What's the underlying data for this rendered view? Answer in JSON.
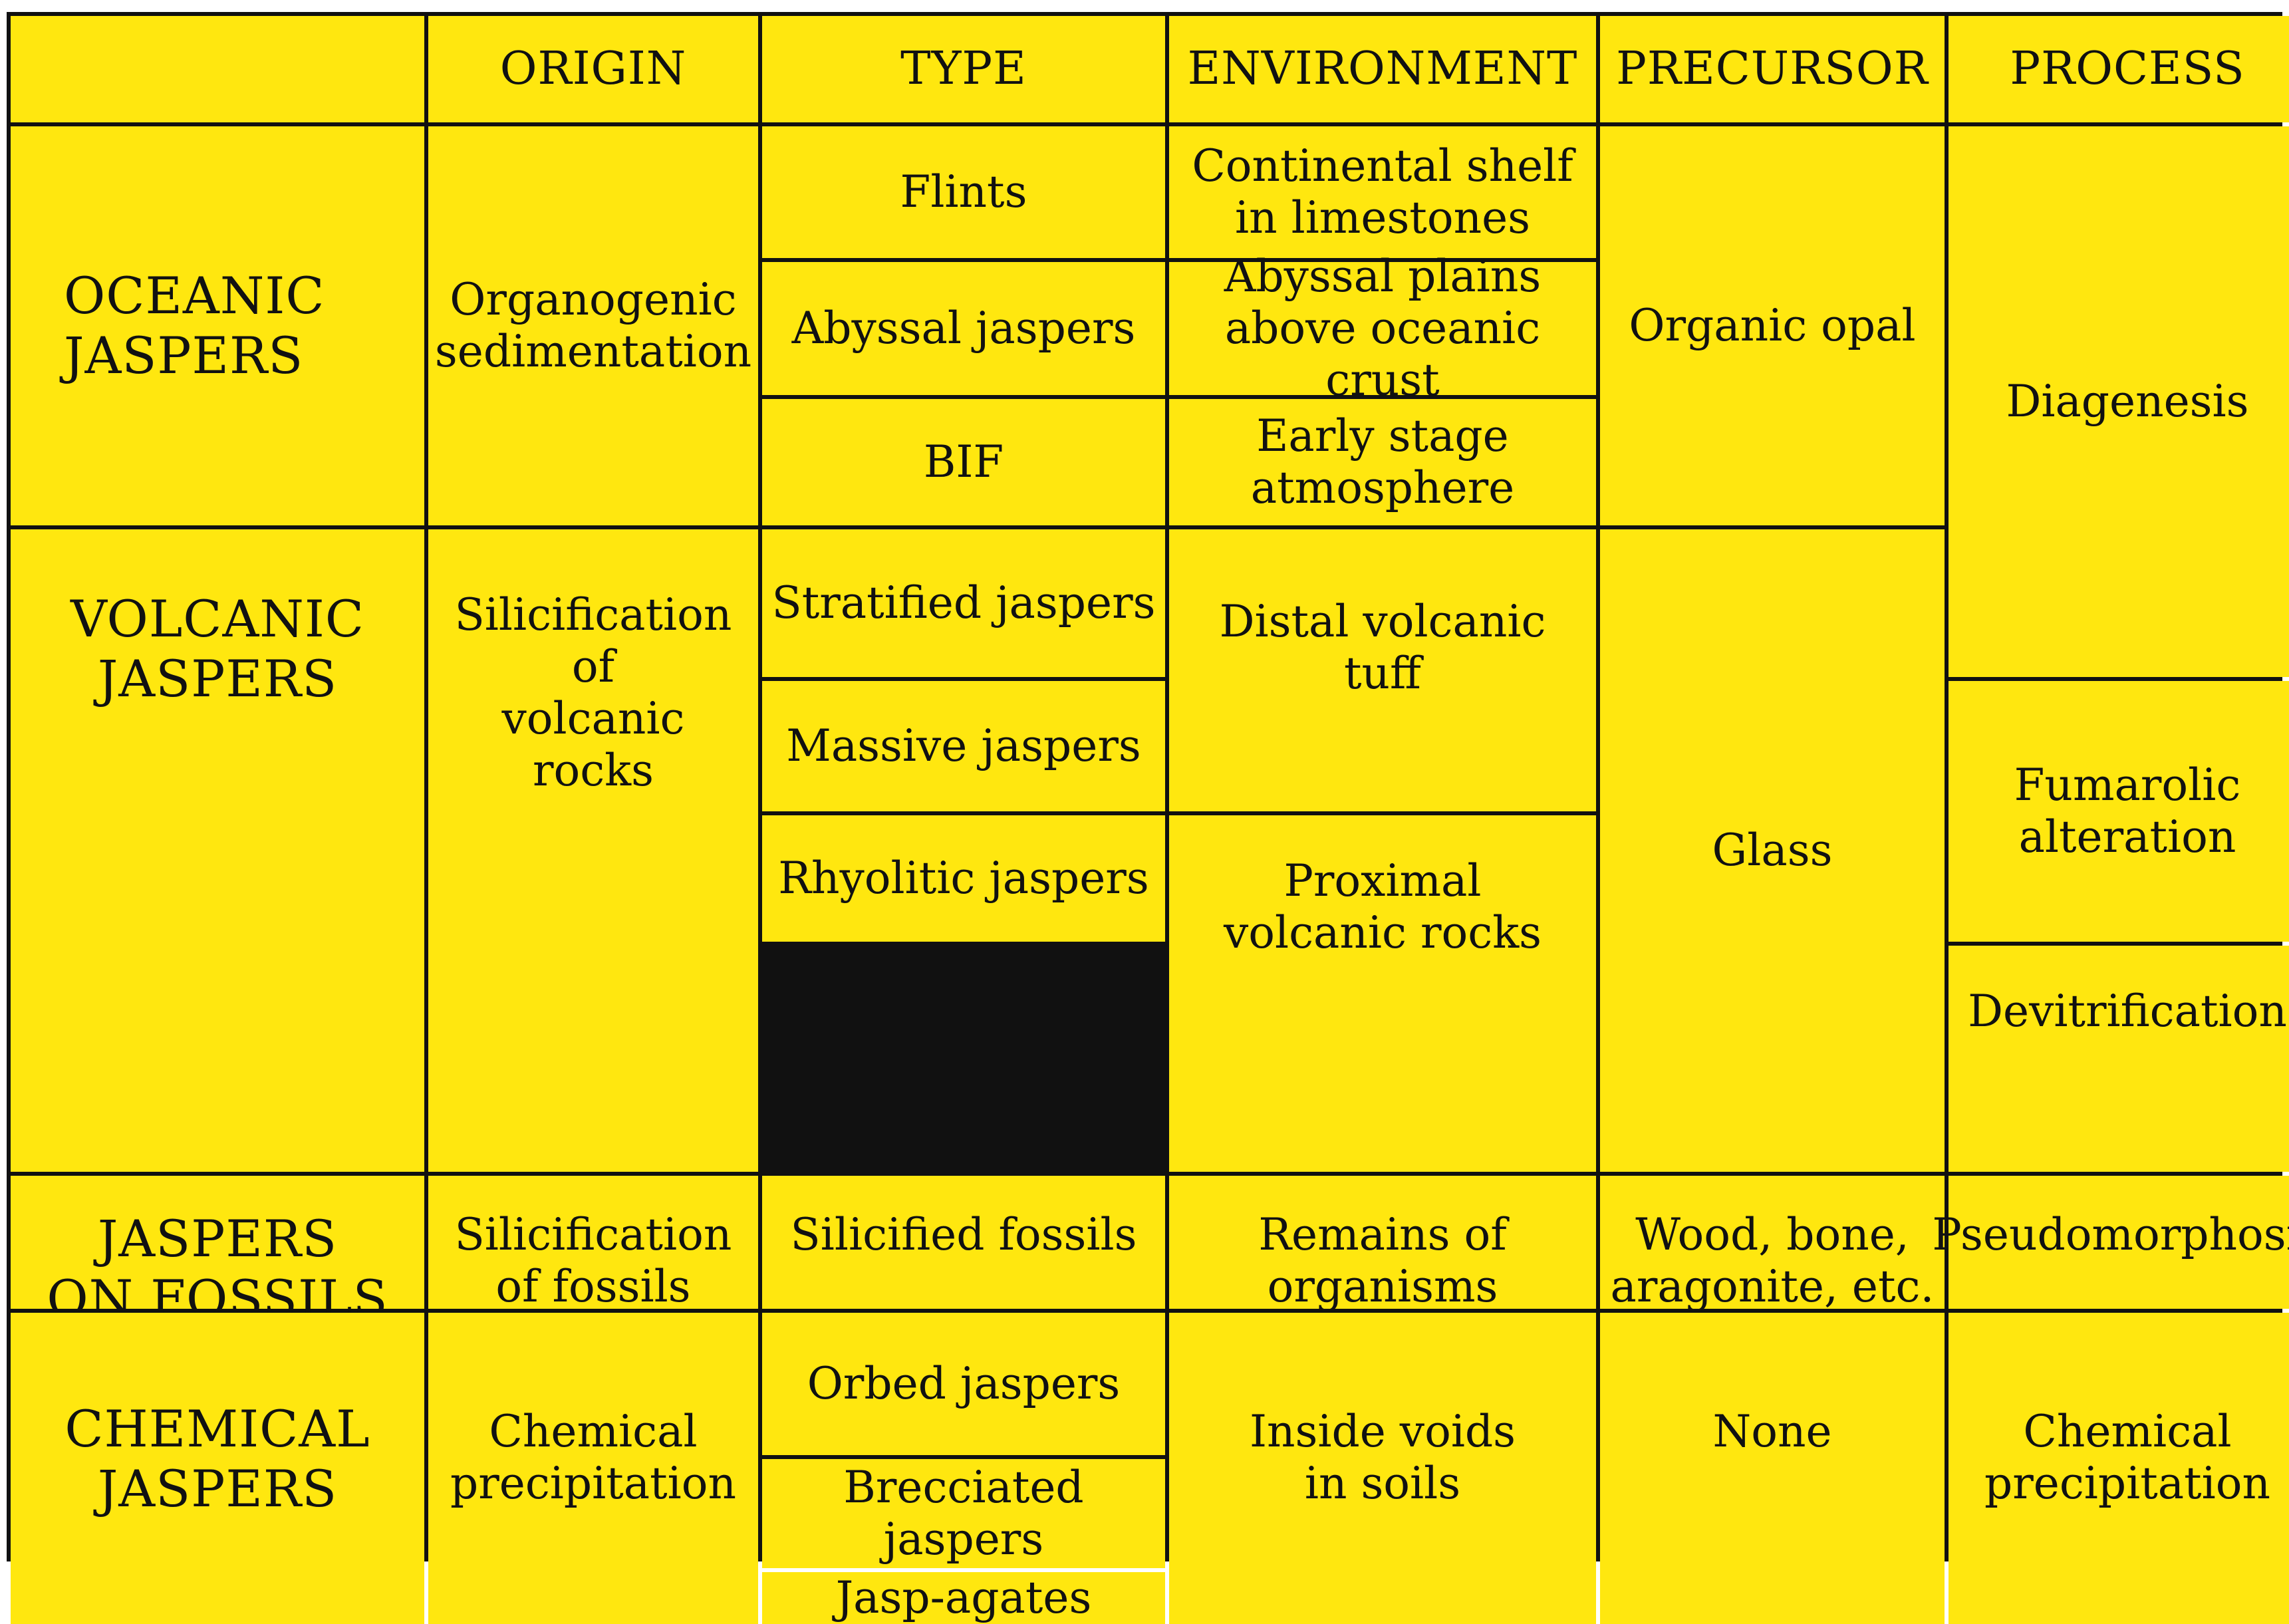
{
  "headers": {
    "blank": "",
    "origin": "ORIGIN",
    "type": "TYPE",
    "environment": "ENVIRONMENT",
    "precursor": "PRECURSOR",
    "process": "PROCESS"
  },
  "oceanic": {
    "label": "OCEANIC\nJASPERS",
    "origin": "Organogenic\nsedimentation",
    "types": [
      "Flints",
      "Abyssal jaspers",
      "BIF"
    ],
    "environments": [
      "Continental shelf\nin limestones",
      "Abyssal plains\nabove oceanic crust",
      "Early stage\natmosphere"
    ],
    "precursor": "Organic opal",
    "process": "Diagenesis"
  },
  "volcanic": {
    "label": "VOLCANIC\nJASPERS",
    "origin": "Silicification of\nvolcanic rocks",
    "types": [
      "Stratified jaspers",
      "Massive jaspers",
      "Rhyolitic jaspers"
    ],
    "environments": [
      "Distal volcanic tuff",
      "Proximal\nvolcanic rocks"
    ],
    "precursor": "Glass",
    "processes": [
      "Fumarolic\nalteration",
      "Devitrification"
    ]
  },
  "fossils": {
    "label": "JASPERS\nON FOSSILS",
    "origin": "Silicification\nof fossils",
    "type": "Silicified fossils",
    "environment": "Remains of\norganisms",
    "precursor": "Wood, bone,\naragonite, etc.",
    "process": "Pseudomorphosis"
  },
  "chemical": {
    "label": "CHEMICAL\nJASPERS",
    "origin": "Chemical\nprecipitation",
    "types": [
      "Orbed jaspers",
      "Brecciated jaspers",
      "Jasp-agates"
    ],
    "environment": "Inside voids\nin soils",
    "precursor": "None",
    "process": "Chemical\nprecipitation"
  },
  "colors": {
    "cell_fill": "#ffe70f",
    "grid_lines": "#111111"
  }
}
